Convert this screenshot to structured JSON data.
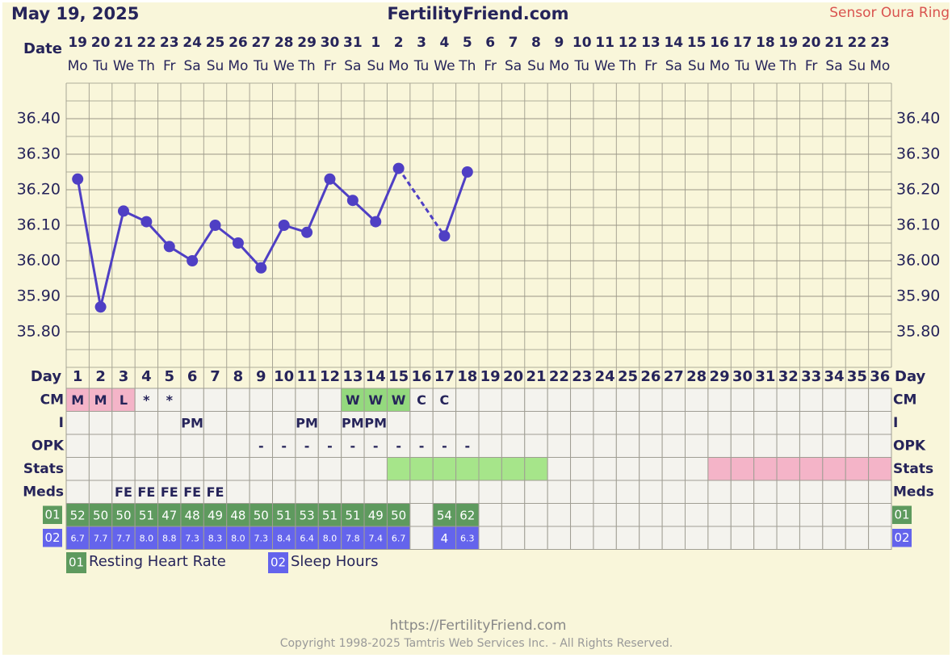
{
  "header": {
    "date": "May 19, 2025",
    "site": "FertilityFriend.com",
    "sensor": "Sensor Oura Ring"
  },
  "date_label": "Date",
  "dates": [
    "19",
    "20",
    "21",
    "22",
    "23",
    "24",
    "25",
    "26",
    "27",
    "28",
    "29",
    "30",
    "31",
    "1",
    "2",
    "3",
    "4",
    "5",
    "6",
    "7",
    "8",
    "9",
    "10",
    "11",
    "12",
    "13",
    "14",
    "15",
    "16",
    "17",
    "18",
    "19",
    "20",
    "21",
    "22",
    "23"
  ],
  "weekdays": [
    "Mo",
    "Tu",
    "We",
    "Th",
    "Fr",
    "Sa",
    "Su",
    "Mo",
    "Tu",
    "We",
    "Th",
    "Fr",
    "Sa",
    "Su",
    "Mo",
    "Tu",
    "We",
    "Th",
    "Fr",
    "Sa",
    "Su",
    "Mo",
    "Tu",
    "We",
    "Th",
    "Fr",
    "Sa",
    "Su",
    "Mo",
    "Tu",
    "We",
    "Th",
    "Fr",
    "Sa",
    "Su",
    "Mo"
  ],
  "chart_data": {
    "type": "line",
    "categories": [
      "1",
      "2",
      "3",
      "4",
      "5",
      "6",
      "7",
      "8",
      "9",
      "10",
      "11",
      "12",
      "13",
      "14",
      "15",
      "16",
      "17",
      "18",
      "19",
      "20",
      "21",
      "22",
      "23",
      "24",
      "25",
      "26",
      "27",
      "28",
      "29",
      "30",
      "31",
      "32",
      "33",
      "34",
      "35",
      "36"
    ],
    "values": [
      36.23,
      35.87,
      36.14,
      36.11,
      36.04,
      36.0,
      36.1,
      36.05,
      35.98,
      36.1,
      36.08,
      36.23,
      36.17,
      36.11,
      36.26,
      null,
      36.07,
      36.25,
      null,
      null,
      null,
      null,
      null,
      null,
      null,
      null,
      null,
      null,
      null,
      null,
      null,
      null,
      null,
      null,
      null,
      null
    ],
    "color": "#4f3fc4",
    "ylim": [
      35.7,
      36.5
    ],
    "yticks": [
      {
        "value": 35.8,
        "label": "35.80"
      },
      {
        "value": 35.9,
        "label": "35.90"
      },
      {
        "value": 36.0,
        "label": "36.00"
      },
      {
        "value": 36.1,
        "label": "36.10"
      },
      {
        "value": 36.2,
        "label": "36.20"
      },
      {
        "value": 36.3,
        "label": "36.30"
      },
      {
        "value": 36.4,
        "label": "36.40"
      }
    ],
    "grid": true,
    "gap_style": "dashed"
  },
  "day_label": "Day",
  "rows": [
    {
      "label": "CM",
      "cells": [
        "M",
        "M",
        "L",
        "*",
        "*",
        null,
        null,
        null,
        null,
        null,
        null,
        null,
        "W",
        "W",
        "W",
        "C",
        "C",
        null,
        null,
        null,
        null,
        null,
        null,
        null,
        null,
        null,
        null,
        null,
        null,
        null,
        null,
        null,
        null,
        null,
        null,
        null
      ],
      "colors": [
        "#f4b4c8",
        "#f4b4c8",
        "#f4b4c8",
        null,
        null,
        null,
        null,
        null,
        null,
        null,
        null,
        null,
        "#94d97e",
        "#94d97e",
        "#94d97e",
        null,
        null,
        null,
        null,
        null,
        null,
        null,
        null,
        null,
        null,
        null,
        null,
        null,
        null,
        null,
        null,
        null,
        null,
        null,
        null,
        null
      ]
    },
    {
      "label": "I",
      "cells": [
        null,
        null,
        null,
        null,
        null,
        "PM",
        null,
        null,
        null,
        null,
        "PM",
        null,
        "PM",
        "PM",
        null,
        null,
        null,
        null,
        null,
        null,
        null,
        null,
        null,
        null,
        null,
        null,
        null,
        null,
        null,
        null,
        null,
        null,
        null,
        null,
        null,
        null
      ]
    },
    {
      "label": "OPK",
      "cells": [
        null,
        null,
        null,
        null,
        null,
        null,
        null,
        null,
        "-",
        "-",
        "-",
        "-",
        "-",
        "-",
        "-",
        "-",
        "-",
        "-",
        null,
        null,
        null,
        null,
        null,
        null,
        null,
        null,
        null,
        null,
        null,
        null,
        null,
        null,
        null,
        null,
        null,
        null
      ]
    },
    {
      "label": "Stats",
      "colors": [
        null,
        null,
        null,
        null,
        null,
        null,
        null,
        null,
        null,
        null,
        null,
        null,
        null,
        null,
        "#a6e58a",
        "#a6e58a",
        "#a6e58a",
        "#a6e58a",
        "#a6e58a",
        "#a6e58a",
        "#a6e58a",
        null,
        null,
        null,
        null,
        null,
        null,
        null,
        "#f4b4c8",
        "#f4b4c8",
        "#f4b4c8",
        "#f4b4c8",
        "#f4b4c8",
        "#f4b4c8",
        "#f4b4c8",
        "#f4b4c8"
      ]
    },
    {
      "label": "Meds",
      "cells": [
        null,
        null,
        "FE",
        "FE",
        "FE",
        "FE",
        "FE",
        null,
        null,
        null,
        null,
        null,
        null,
        null,
        null,
        null,
        null,
        null,
        null,
        null,
        null,
        null,
        null,
        null,
        null,
        null,
        null,
        null,
        null,
        null,
        null,
        null,
        null,
        null,
        null,
        null
      ]
    },
    {
      "label": "01",
      "fill": "#5e9a5e",
      "cells": [
        "52",
        "50",
        "50",
        "51",
        "47",
        "48",
        "49",
        "48",
        "50",
        "51",
        "53",
        "51",
        "51",
        "49",
        "50",
        null,
        "54",
        "62",
        null,
        null,
        null,
        null,
        null,
        null,
        null,
        null,
        null,
        null,
        null,
        null,
        null,
        null,
        null,
        null,
        null,
        null
      ]
    },
    {
      "label": "02",
      "fill": "#6464ec",
      "small": true,
      "cells": [
        "6.7",
        "7.7",
        "7.7",
        "8.0",
        "8.8",
        "7.3",
        "8.3",
        "8.0",
        "7.3",
        "8.4",
        "6.4",
        "8.0",
        "7.8",
        "7.4",
        "6.7",
        null,
        "4",
        "6.3",
        null,
        null,
        null,
        null,
        null,
        null,
        null,
        null,
        null,
        null,
        null,
        null,
        null,
        null,
        null,
        null,
        null,
        null
      ]
    }
  ],
  "legend": [
    {
      "code": "01",
      "name": "Resting Heart Rate",
      "color": "#5e9a5e"
    },
    {
      "code": "02",
      "name": "Sleep Hours",
      "color": "#6464ec"
    }
  ],
  "footer": {
    "url": "https://FertilityFriend.com",
    "copyright": "Copyright 1998-2025 Tamtris Web Services Inc. - All Rights Reserved."
  }
}
